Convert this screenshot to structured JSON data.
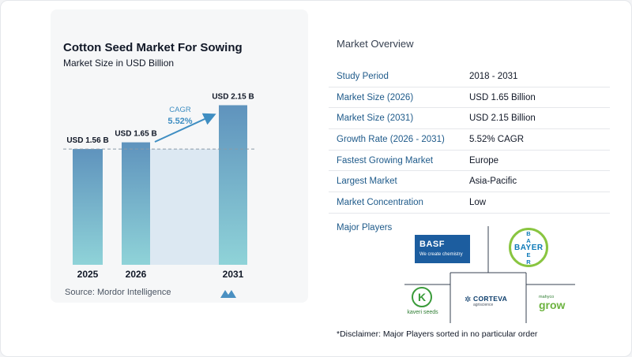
{
  "header": {
    "title": "Cotton Seed Market For Sowing",
    "subtitle": "Market Size in USD Billion"
  },
  "source": "Source:  Mordor Intelligence",
  "chart_data": {
    "type": "bar",
    "categories": [
      "2025",
      "2026",
      "2031"
    ],
    "values": [
      1.56,
      1.65,
      2.15
    ],
    "data_labels": [
      "USD 1.56 B",
      "USD 1.65 B",
      "USD 2.15 B"
    ],
    "cagr_label": "CAGR",
    "cagr_value": "5.52%",
    "title": "Cotton Seed Market For Sowing",
    "subtitle": "Market Size in USD Billion",
    "xlabel": "",
    "ylabel": "",
    "ylim": [
      0,
      2.2
    ],
    "grid": false,
    "legend": "none",
    "colors": {
      "bar_top": "#5f93bd",
      "bar_bottom": "#8fd3d8",
      "band": "#dce8f2",
      "arrow": "#3f8ec2",
      "reference_line": "#8a9aa8"
    }
  },
  "overview": {
    "title": "Market Overview",
    "rows": [
      {
        "key": "Study Period",
        "value": "2018 - 2031"
      },
      {
        "key": "Market Size (2026)",
        "value": "USD 1.65 Billion"
      },
      {
        "key": "Market Size (2031)",
        "value": "USD 2.15 Billion"
      },
      {
        "key": "Growth Rate (2026 - 2031)",
        "value": "5.52% CAGR"
      },
      {
        "key": "Fastest Growing Market",
        "value": "Europe"
      },
      {
        "key": "Largest Market",
        "value": "Asia-Pacific"
      },
      {
        "key": "Market Concentration",
        "value": "Low"
      }
    ]
  },
  "players": {
    "label": "Major Players",
    "basf": {
      "name": "BASF",
      "tagline": "We create chemistry",
      "mark": "▪▫"
    },
    "bayer": {
      "horizontal": "BAYER",
      "vertical": [
        "B",
        "A",
        "",
        "E",
        "R"
      ]
    },
    "kaveri": {
      "icon": "K",
      "name": "kaveri seeds"
    },
    "corteva": {
      "icon": "✲",
      "name": "CORTEVA",
      "sub": "agriscience"
    },
    "mahyco": {
      "small": "mahyco",
      "big": "grow"
    },
    "disclaimer": "*Disclaimer: Major Players sorted in no particular order"
  }
}
